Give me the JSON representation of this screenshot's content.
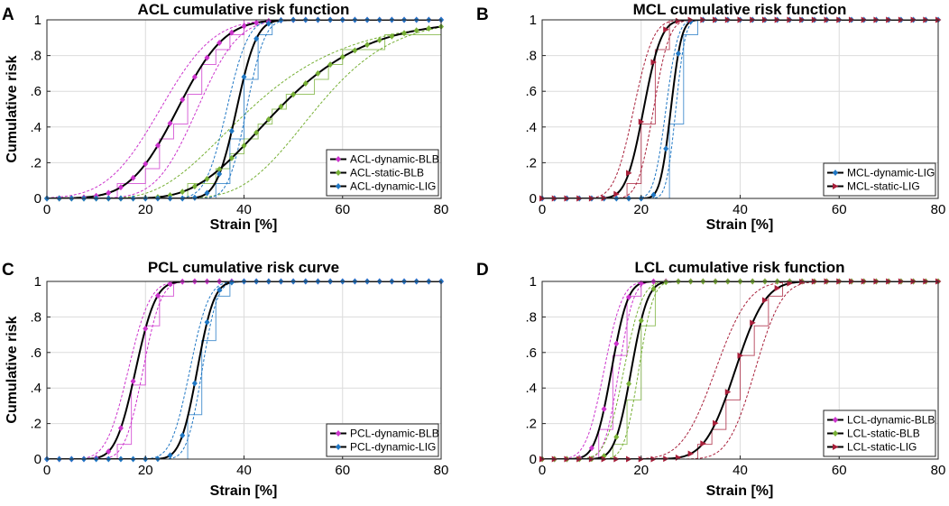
{
  "figure": {
    "panel_letters": [
      "A",
      "B",
      "C",
      "D"
    ]
  },
  "chart_data": [
    {
      "panel": "A",
      "type": "line",
      "title": "ACL cumulative risk function",
      "xlabel": "Strain [%]",
      "ylabel": "Cumulative risk",
      "xlim": [
        0,
        80
      ],
      "ylim": [
        0,
        1
      ],
      "xticks": [
        0,
        20,
        40,
        60,
        80
      ],
      "yticks": [
        0,
        0.2,
        0.4,
        0.6,
        0.8,
        1
      ],
      "grid": true,
      "legend_position": "bottom-right",
      "series": [
        {
          "name": "ACL-dynamic-BLB",
          "color": "#cc33cc",
          "marker": "diamond",
          "model": {
            "mu": 26.5,
            "sigma": 7.5,
            "log": false
          },
          "ci_low": {
            "mu": 30.5,
            "sigma": 6.5,
            "log": false
          },
          "ci_high": {
            "mu": 23.0,
            "sigma": 8.5,
            "log": false
          }
        },
        {
          "name": "ACL-static-BLB",
          "color": "#77b035",
          "marker": "diamond",
          "model": {
            "mu": 3.85,
            "sigma": 0.3,
            "log": true
          },
          "ci_low": {
            "mu": 4.0,
            "sigma": 0.22,
            "log": true
          },
          "ci_high": {
            "mu": 3.72,
            "sigma": 0.38,
            "log": true
          }
        },
        {
          "name": "ACL-dynamic-LIG",
          "color": "#1f77c4",
          "marker": "diamond",
          "model": {
            "mu": 38.5,
            "sigma": 3.2,
            "log": false
          },
          "ci_low": {
            "mu": 40.5,
            "sigma": 2.9,
            "log": false
          },
          "ci_high": {
            "mu": 36.5,
            "sigma": 3.4,
            "log": false
          }
        }
      ]
    },
    {
      "panel": "B",
      "type": "line",
      "title": "MCL cumulative risk function",
      "xlabel": "Strain [%]",
      "ylabel": "",
      "xlim": [
        0,
        80
      ],
      "ylim": [
        0,
        1
      ],
      "xticks": [
        0,
        20,
        40,
        60,
        80
      ],
      "yticks": [
        0,
        0.2,
        0.4,
        0.6,
        0.8,
        1
      ],
      "grid": true,
      "legend_position": "bottom-right",
      "series": [
        {
          "name": "MCL-dynamic-LIG",
          "color": "#1f77c4",
          "marker": "diamond",
          "model": {
            "mu": 26.0,
            "sigma": 1.7,
            "log": false
          },
          "ci_low": {
            "mu": 27.0,
            "sigma": 1.5,
            "log": false
          },
          "ci_high": {
            "mu": 25.0,
            "sigma": 1.9,
            "log": false
          }
        },
        {
          "name": "MCL-static-LIG",
          "color": "#a81f3a",
          "marker": "triangle-right",
          "model": {
            "mu": 20.5,
            "sigma": 2.8,
            "log": false
          },
          "ci_low": {
            "mu": 22.5,
            "sigma": 2.5,
            "log": false
          },
          "ci_high": {
            "mu": 18.5,
            "sigma": 3.1,
            "log": false
          }
        }
      ]
    },
    {
      "panel": "C",
      "type": "line",
      "title": "PCL cumulative risk curve",
      "xlabel": "Strain [%]",
      "ylabel": "Cumulative risk",
      "xlim": [
        0,
        80
      ],
      "ylim": [
        0,
        1
      ],
      "xticks": [
        0,
        20,
        40,
        60,
        80
      ],
      "yticks": [
        0,
        0.2,
        0.4,
        0.6,
        0.8,
        1
      ],
      "grid": true,
      "legend_position": "bottom-right",
      "series": [
        {
          "name": "PCL-dynamic-BLB",
          "color": "#cc33cc",
          "marker": "diamond",
          "model": {
            "mu": 18.0,
            "sigma": 3.2,
            "log": false
          },
          "ci_low": {
            "mu": 19.5,
            "sigma": 2.9,
            "log": false
          },
          "ci_high": {
            "mu": 16.5,
            "sigma": 3.5,
            "log": false
          }
        },
        {
          "name": "PCL-dynamic-LIG",
          "color": "#1f77c4",
          "marker": "diamond",
          "model": {
            "mu": 30.5,
            "sigma": 2.7,
            "log": false
          },
          "ci_low": {
            "mu": 31.5,
            "sigma": 2.4,
            "log": false
          },
          "ci_high": {
            "mu": 29.0,
            "sigma": 3.0,
            "log": false
          }
        }
      ]
    },
    {
      "panel": "D",
      "type": "line",
      "title": "LCL cumulative risk function",
      "xlabel": "Strain [%]",
      "ylabel": "",
      "xlim": [
        0,
        80
      ],
      "ylim": [
        0,
        1
      ],
      "xticks": [
        0,
        20,
        40,
        60,
        80
      ],
      "yticks": [
        0,
        0.2,
        0.4,
        0.6,
        0.8,
        1
      ],
      "grid": true,
      "legend_position": "bottom-right",
      "series": [
        {
          "name": "LCL-dynamic-BLB",
          "color": "#cc33cc",
          "marker": "diamond",
          "model": {
            "mu": 14.0,
            "sigma": 2.6,
            "log": false
          },
          "ci_low": {
            "mu": 15.5,
            "sigma": 2.3,
            "log": false
          },
          "ci_high": {
            "mu": 12.5,
            "sigma": 2.9,
            "log": false
          }
        },
        {
          "name": "LCL-static-BLB",
          "color": "#77b035",
          "marker": "diamond",
          "model": {
            "mu": 18.0,
            "sigma": 2.6,
            "log": false
          },
          "ci_low": {
            "mu": 19.5,
            "sigma": 2.3,
            "log": false
          },
          "ci_high": {
            "mu": 16.5,
            "sigma": 2.9,
            "log": false
          }
        },
        {
          "name": "LCL-static-LIG",
          "color": "#a81f3a",
          "marker": "triangle-right",
          "model": {
            "mu": 39.0,
            "sigma": 4.8,
            "log": false
          },
          "ci_low": {
            "mu": 43.0,
            "sigma": 4.3,
            "log": false
          },
          "ci_high": {
            "mu": 35.0,
            "sigma": 5.3,
            "log": false
          }
        }
      ]
    }
  ]
}
